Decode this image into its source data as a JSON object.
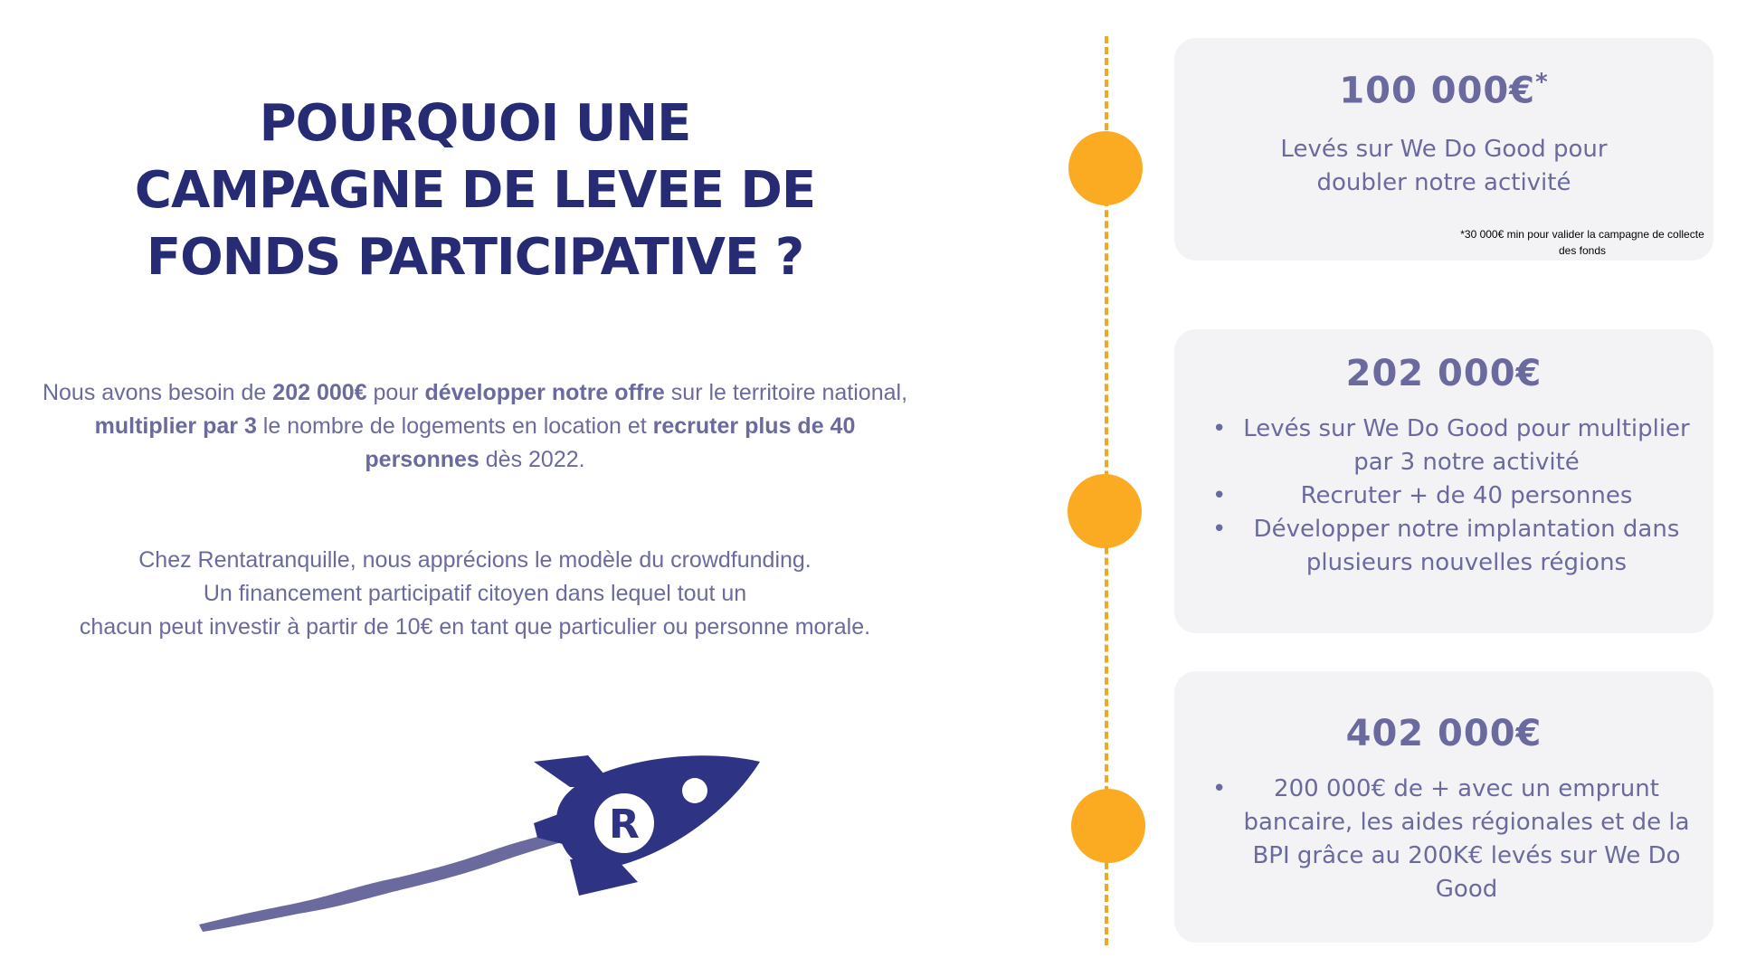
{
  "title": {
    "line1": "POURQUOI UNE",
    "line2": "CAMPAGNE DE LEVEE DE",
    "line3": "FONDS PARTICIPATIVE ?"
  },
  "intro": {
    "t1": "Nous avons besoin de ",
    "b1": "202 000€",
    "t2": " pour ",
    "b2": "développer notre offre",
    "t3": " sur le territoire national, ",
    "b3": "multiplier par 3",
    "t4": " le nombre de logements en location et ",
    "b4": "recruter plus de 40 personnes",
    "t5": " dès 2022."
  },
  "about": {
    "line1": "Chez Rentatranquille, nous apprécions le modèle du crowdfunding.",
    "line2": "Un financement participatif citoyen dans lequel tout un",
    "line3": "chacun peut investir à partir de 10€ en tant que particulier ou personne morale."
  },
  "logo": {
    "letter": "R"
  },
  "colors": {
    "navy": "#262b73",
    "purple": "#6a6a9e",
    "orange": "#fbab22",
    "card_bg": "#f3f3f6"
  },
  "milestones": [
    {
      "amount": "100 000€",
      "amount_mark": "*",
      "text_line1": "Levés sur We Do Good pour",
      "text_line2": "doubler notre activité",
      "footnote": "*30 000€ min pour valider la campagne de collecte des fonds"
    },
    {
      "amount": "202 000€",
      "bullets": [
        "Levés sur We Do Good pour multiplier par 3 notre activité",
        "Recruter + de 40 personnes",
        "Développer notre implantation dans plusieurs nouvelles régions"
      ]
    },
    {
      "amount": "402 000€",
      "bullets": [
        "200 000€ de + avec un emprunt bancaire, les aides régionales et de la BPI grâce au 200K€ levés sur We Do Good"
      ]
    }
  ]
}
